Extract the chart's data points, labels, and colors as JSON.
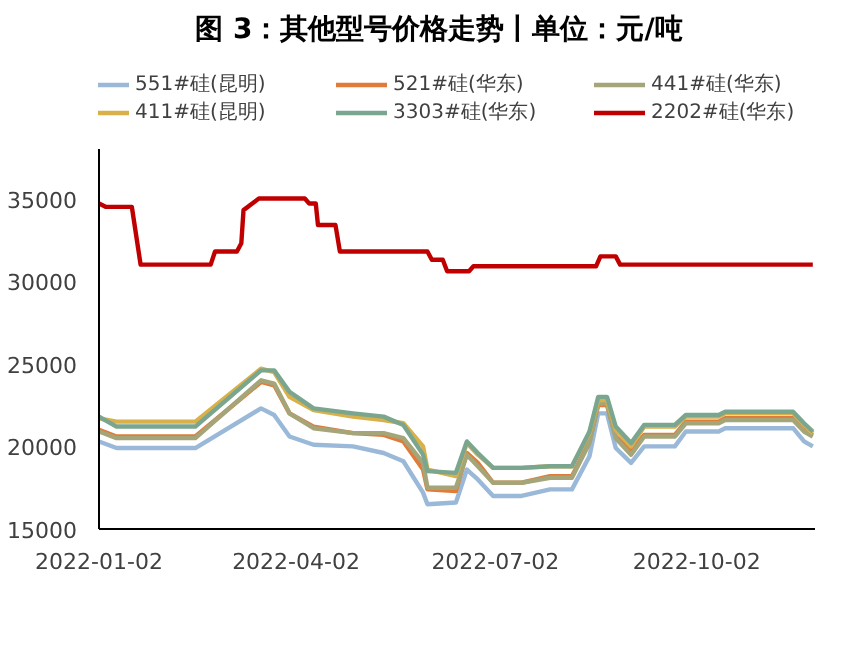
{
  "chart_data": {
    "type": "line",
    "title": "图 3：其他型号价格走势丨单位：元/吨",
    "x": [
      "2022-01-02",
      "2022-01-10",
      "2022-02-15",
      "2022-03-17",
      "2022-03-23",
      "2022-03-30",
      "2022-04-10",
      "2022-04-28",
      "2022-05-12",
      "2022-05-21",
      "2022-05-30",
      "2022-06-01",
      "2022-06-14",
      "2022-06-19",
      "2022-06-24",
      "2022-07-01",
      "2022-07-14",
      "2022-07-27",
      "2022-08-06",
      "2022-08-14",
      "2022-08-18",
      "2022-08-22",
      "2022-08-26",
      "2022-09-02",
      "2022-09-08",
      "2022-09-22",
      "2022-09-27",
      "2022-10-12",
      "2022-10-15",
      "2022-11-15",
      "2022-11-20",
      "2022-11-24"
    ],
    "series": [
      {
        "name": "551#硅(昆明)",
        "color": "#9ab8d8",
        "values": [
          20300,
          19900,
          19900,
          22300,
          21900,
          20600,
          20100,
          20000,
          19600,
          19100,
          17200,
          16500,
          16600,
          18600,
          18000,
          17000,
          17000,
          17400,
          17400,
          19400,
          22000,
          22000,
          19900,
          19000,
          20000,
          20000,
          20900,
          20900,
          21100,
          21100,
          20300,
          20000
        ]
      },
      {
        "name": "521#硅(华东)",
        "color": "#e07b39",
        "values": [
          21000,
          20600,
          20600,
          23900,
          23700,
          22000,
          21200,
          20800,
          20700,
          20300,
          18600,
          17400,
          17300,
          19600,
          19000,
          17800,
          17800,
          18200,
          18200,
          20300,
          22500,
          22500,
          20600,
          19700,
          20700,
          20700,
          21500,
          21500,
          21700,
          21700,
          21000,
          20700
        ]
      },
      {
        "name": "441#硅(华东)",
        "color": "#a5a57a",
        "values": [
          20900,
          20500,
          20500,
          24000,
          23800,
          22000,
          21100,
          20800,
          20800,
          20500,
          19000,
          17500,
          17500,
          19500,
          18800,
          17800,
          17800,
          18100,
          18100,
          20200,
          22600,
          22600,
          20500,
          19500,
          20600,
          20600,
          21400,
          21400,
          21600,
          21600,
          20900,
          20600
        ]
      },
      {
        "name": "411#硅(昆明)",
        "color": "#d9b04a",
        "values": [
          21700,
          21500,
          21500,
          24700,
          24500,
          23000,
          22200,
          21800,
          21600,
          21400,
          20000,
          18600,
          18200,
          20200,
          19500,
          18700,
          18700,
          18800,
          18800,
          20800,
          22800,
          22800,
          21000,
          20000,
          21200,
          21200,
          21800,
          21800,
          22000,
          22000,
          21300,
          20800
        ]
      },
      {
        "name": "3303#硅(华东)",
        "color": "#7aa68f",
        "values": [
          21800,
          21200,
          21200,
          24600,
          24600,
          23300,
          22300,
          22000,
          21800,
          21300,
          19500,
          18500,
          18400,
          20300,
          19600,
          18700,
          18700,
          18800,
          18800,
          20900,
          23000,
          23000,
          21200,
          20200,
          21300,
          21300,
          21900,
          21900,
          22100,
          22100,
          21400,
          20900
        ]
      },
      {
        "name": "2202#硅(华东)",
        "color": "#c00000",
        "x": [
          "2022-01-02",
          "2022-01-05",
          "2022-01-17",
          "2022-01-21",
          "2022-02-22",
          "2022-02-24",
          "2022-03-06",
          "2022-03-08",
          "2022-03-09",
          "2022-03-13",
          "2022-03-16",
          "2022-04-06",
          "2022-04-08",
          "2022-04-11",
          "2022-04-12",
          "2022-04-20",
          "2022-04-22",
          "2022-06-01",
          "2022-06-03",
          "2022-06-08",
          "2022-06-10",
          "2022-06-20",
          "2022-06-22",
          "2022-08-17",
          "2022-08-19",
          "2022-08-26",
          "2022-08-28",
          "2022-11-24"
        ],
        "values": [
          34700,
          34500,
          34500,
          31000,
          31000,
          31800,
          31800,
          32300,
          34300,
          34700,
          35000,
          35000,
          34700,
          34700,
          33400,
          33400,
          31800,
          31800,
          31300,
          31300,
          30600,
          30600,
          30900,
          30900,
          31500,
          31500,
          31000,
          31000
        ]
      }
    ],
    "xlim": [
      "2022-01-02",
      "2022-11-25"
    ],
    "xticks": [
      {
        "value": "2022-01-02",
        "label": "2022-01-02"
      },
      {
        "value": "2022-04-02",
        "label": "2022-04-02"
      },
      {
        "value": "2022-07-02",
        "label": "2022-07-02"
      },
      {
        "value": "2022-10-02",
        "label": "2022-10-02"
      }
    ],
    "ylim": [
      15000,
      38000
    ],
    "yticks": [
      15000,
      20000,
      25000,
      30000,
      35000
    ],
    "grid": false,
    "legend": "top",
    "marker": "none",
    "line_style": "solid"
  }
}
